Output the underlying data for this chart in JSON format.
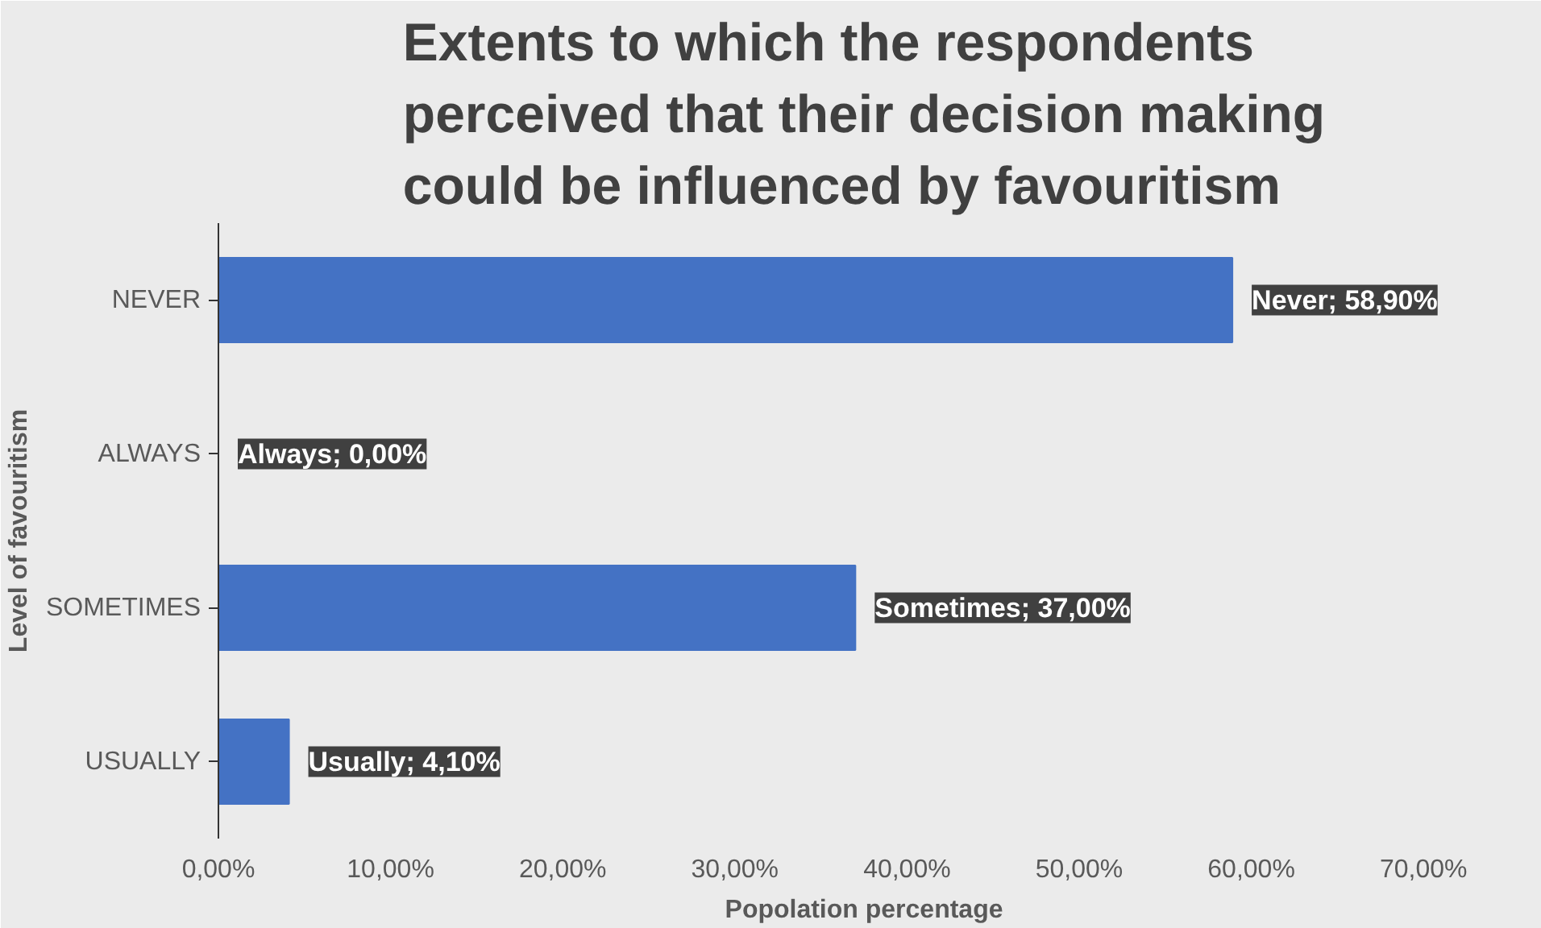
{
  "chart_data": {
    "type": "bar",
    "orientation": "horizontal",
    "title": "Extents to which the respondents perceived that their decision making could be influenced by favouritism",
    "xlabel": "Popolation percentage",
    "ylabel": "Level of favouritism",
    "categories": [
      "NEVER",
      "ALWAYS",
      "SOMETIMES",
      "USUALLY"
    ],
    "values": [
      58.9,
      0,
      37,
      4.1
    ],
    "value_labels": [
      "Never; 58,90%",
      "Always; 0,00%",
      "Sometimes; 37,00%",
      "Usually; 4,10%"
    ],
    "color": "#4472c4",
    "xlim": [
      0,
      75
    ],
    "xticks": [
      {
        "value": 0,
        "label": "0,00%"
      },
      {
        "value": 10,
        "label": "10,00%"
      },
      {
        "value": 20,
        "label": "20,00%"
      },
      {
        "value": 30,
        "label": "30,00%"
      },
      {
        "value": 40,
        "label": "40,00%"
      },
      {
        "value": 50,
        "label": "50,00%"
      },
      {
        "value": 60,
        "label": "60,00%"
      },
      {
        "value": 70,
        "label": "70,00%"
      }
    ],
    "grid": false
  }
}
